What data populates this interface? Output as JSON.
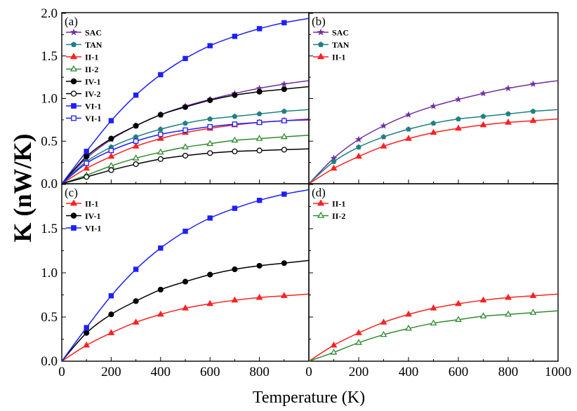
{
  "figure": {
    "ylabel": "K (nW/K)",
    "xlabel": "Temperature (K)"
  },
  "chart_data": [
    {
      "type": "line",
      "panel": "(a)",
      "xlim": [
        0,
        1000
      ],
      "ylim": [
        0,
        2.0
      ],
      "x_ticks": [],
      "y_ticks": [
        "0.0",
        "0.5",
        "1.0",
        "1.5",
        "2.0"
      ],
      "legend": "top-left",
      "x": [
        0,
        100,
        200,
        300,
        400,
        500,
        600,
        700,
        800,
        900,
        1000
      ],
      "series": [
        {
          "name": "SAC",
          "color": "#7030a0",
          "marker": "star",
          "values": [
            0,
            0.3,
            0.52,
            0.68,
            0.81,
            0.91,
            0.99,
            1.06,
            1.12,
            1.17,
            1.21
          ]
        },
        {
          "name": "TAN",
          "color": "#1f8080",
          "marker": "pentagon",
          "values": [
            0,
            0.26,
            0.43,
            0.55,
            0.64,
            0.71,
            0.76,
            0.79,
            0.82,
            0.85,
            0.87
          ]
        },
        {
          "name": "II-1",
          "color": "#ff2020",
          "marker": "triangle",
          "values": [
            0,
            0.18,
            0.32,
            0.44,
            0.53,
            0.6,
            0.65,
            0.69,
            0.72,
            0.74,
            0.76
          ]
        },
        {
          "name": "II-2",
          "color": "#2e8b2e",
          "marker": "triangle-open",
          "values": [
            0,
            0.1,
            0.21,
            0.3,
            0.37,
            0.43,
            0.47,
            0.51,
            0.53,
            0.55,
            0.57
          ]
        },
        {
          "name": "IV-1",
          "color": "#000000",
          "marker": "circle",
          "values": [
            0,
            0.32,
            0.53,
            0.68,
            0.81,
            0.9,
            0.98,
            1.04,
            1.08,
            1.11,
            1.14
          ]
        },
        {
          "name": "IV-2",
          "color": "#000000",
          "marker": "circle-open",
          "values": [
            0,
            0.08,
            0.16,
            0.23,
            0.29,
            0.33,
            0.36,
            0.38,
            0.39,
            0.4,
            0.41
          ]
        },
        {
          "name": "VI-1",
          "color": "#1f1fff",
          "marker": "square",
          "values": [
            0,
            0.38,
            0.74,
            1.04,
            1.28,
            1.47,
            1.62,
            1.73,
            1.82,
            1.89,
            1.94
          ]
        },
        {
          "name": "VI-1",
          "color": "#1f1fff",
          "marker": "square-open",
          "values": [
            0,
            0.24,
            0.39,
            0.5,
            0.58,
            0.63,
            0.67,
            0.7,
            0.72,
            0.74,
            0.75
          ]
        }
      ]
    },
    {
      "type": "line",
      "panel": "(b)",
      "xlim": [
        0,
        1000
      ],
      "ylim": [
        0,
        2.0
      ],
      "x_ticks": [],
      "y_ticks": [],
      "legend": "top-left",
      "x": [
        0,
        100,
        200,
        300,
        400,
        500,
        600,
        700,
        800,
        900,
        1000
      ],
      "series": [
        {
          "name": "SAC",
          "color": "#7030a0",
          "marker": "star",
          "values": [
            0,
            0.3,
            0.52,
            0.68,
            0.81,
            0.91,
            0.99,
            1.06,
            1.12,
            1.17,
            1.21
          ]
        },
        {
          "name": "TAN",
          "color": "#1f8080",
          "marker": "pentagon",
          "values": [
            0,
            0.26,
            0.43,
            0.55,
            0.64,
            0.71,
            0.76,
            0.79,
            0.82,
            0.85,
            0.87
          ]
        },
        {
          "name": "II-1",
          "color": "#ff2020",
          "marker": "triangle",
          "values": [
            0,
            0.18,
            0.32,
            0.44,
            0.53,
            0.6,
            0.65,
            0.69,
            0.72,
            0.74,
            0.76
          ]
        }
      ]
    },
    {
      "type": "line",
      "panel": "(c)",
      "xlim": [
        0,
        1000
      ],
      "ylim": [
        0,
        2.0
      ],
      "x_ticks": [
        "0",
        "200",
        "400",
        "600",
        "800"
      ],
      "y_ticks": [
        "0.0",
        "0.5",
        "1.0",
        "1.5"
      ],
      "legend": "top-left",
      "x": [
        0,
        100,
        200,
        300,
        400,
        500,
        600,
        700,
        800,
        900,
        1000
      ],
      "series": [
        {
          "name": "II-1",
          "color": "#ff2020",
          "marker": "triangle",
          "values": [
            0,
            0.18,
            0.32,
            0.44,
            0.53,
            0.6,
            0.65,
            0.69,
            0.72,
            0.74,
            0.76
          ]
        },
        {
          "name": "IV-1",
          "color": "#000000",
          "marker": "circle",
          "values": [
            0,
            0.32,
            0.53,
            0.68,
            0.81,
            0.9,
            0.98,
            1.04,
            1.08,
            1.11,
            1.14
          ]
        },
        {
          "name": "VI-1",
          "color": "#1f1fff",
          "marker": "square",
          "values": [
            0,
            0.38,
            0.74,
            1.04,
            1.28,
            1.47,
            1.62,
            1.73,
            1.82,
            1.89,
            1.94
          ]
        }
      ]
    },
    {
      "type": "line",
      "panel": "(d)",
      "xlim": [
        0,
        1000
      ],
      "ylim": [
        0,
        2.0
      ],
      "x_ticks": [
        "0",
        "200",
        "400",
        "600",
        "800",
        "1000"
      ],
      "y_ticks": [],
      "legend": "top-left",
      "x": [
        0,
        100,
        200,
        300,
        400,
        500,
        600,
        700,
        800,
        900,
        1000
      ],
      "series": [
        {
          "name": "II-1",
          "color": "#ff2020",
          "marker": "triangle",
          "values": [
            0,
            0.18,
            0.32,
            0.44,
            0.53,
            0.6,
            0.65,
            0.69,
            0.72,
            0.74,
            0.76
          ]
        },
        {
          "name": "II-2",
          "color": "#2e8b2e",
          "marker": "triangle-open",
          "values": [
            0,
            0.1,
            0.21,
            0.3,
            0.37,
            0.43,
            0.47,
            0.51,
            0.53,
            0.55,
            0.57
          ]
        }
      ]
    }
  ]
}
